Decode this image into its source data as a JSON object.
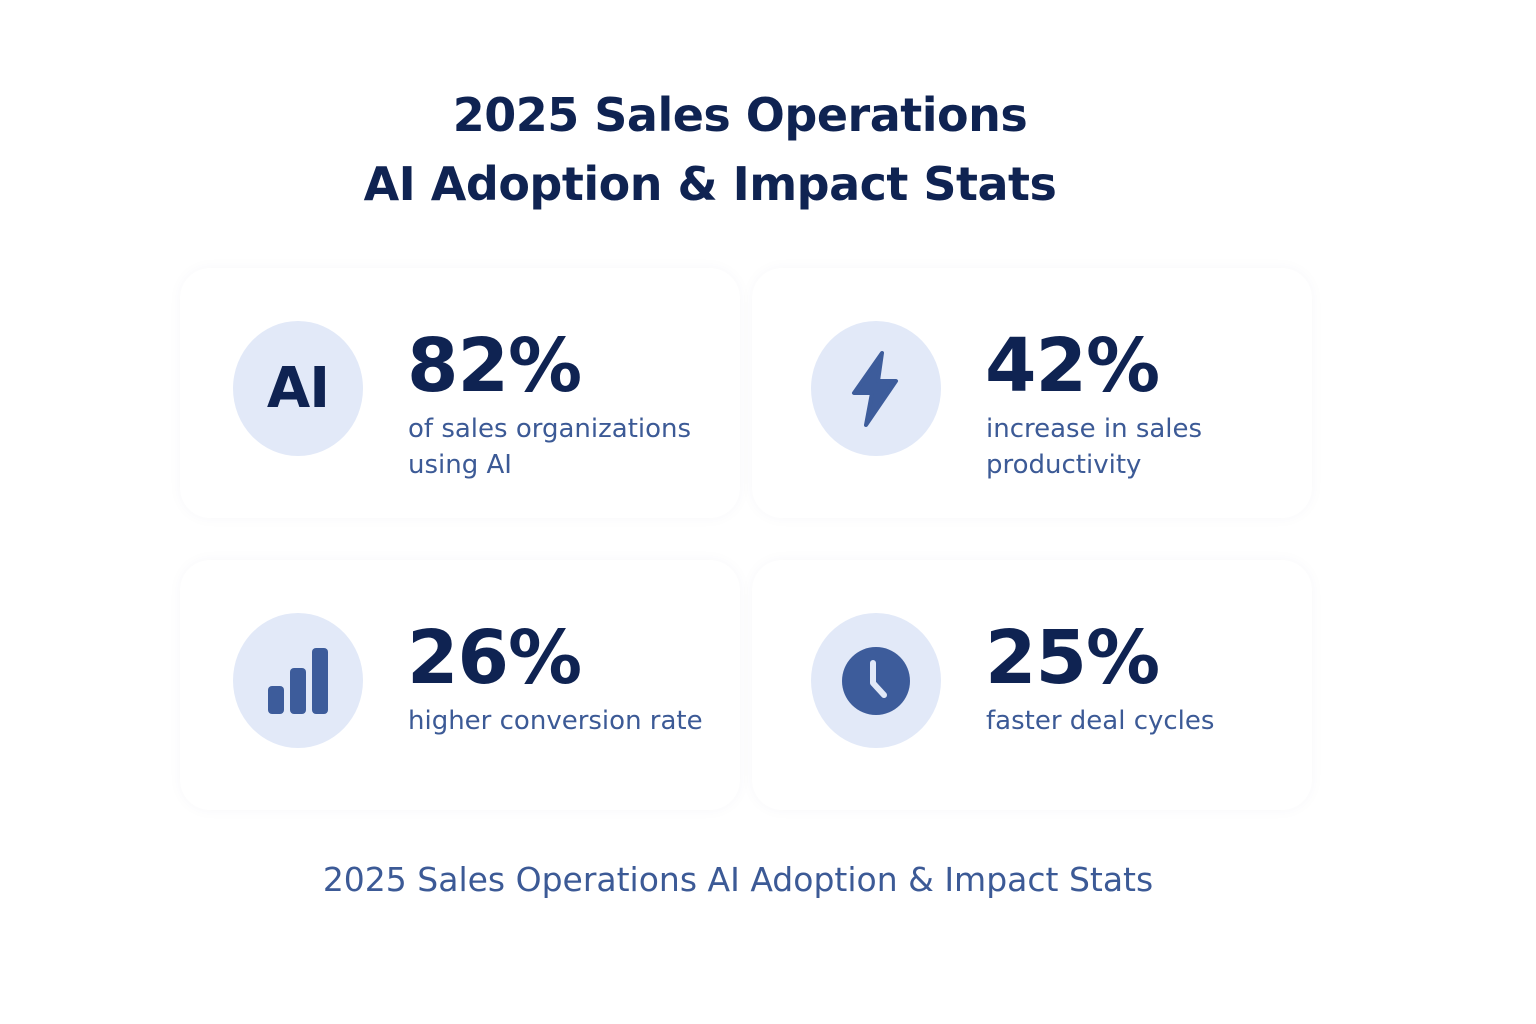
{
  "header": {
    "title_line1": "2025 Sales Operations",
    "title_line2": "AI Adoption & Impact Stats"
  },
  "stats": [
    {
      "icon": "ai-text-icon",
      "icon_text": "AI",
      "value": "82%",
      "description": "of sales organizations using AI"
    },
    {
      "icon": "lightning-bolt-icon",
      "value": "42%",
      "description": "increase in sales productivity"
    },
    {
      "icon": "bar-chart-icon",
      "value": "26%",
      "description": "higher conversion rate"
    },
    {
      "icon": "clock-icon",
      "value": "25%",
      "description": "faster deal cycles"
    }
  ],
  "footer": {
    "caption": "2025 Sales Operations AI Adoption & Impact Stats"
  },
  "colors": {
    "heading": "#0f2352",
    "body_text": "#3c5a96",
    "icon_bg": "#e2e9f8",
    "icon_fill": "#3d5c9b"
  }
}
